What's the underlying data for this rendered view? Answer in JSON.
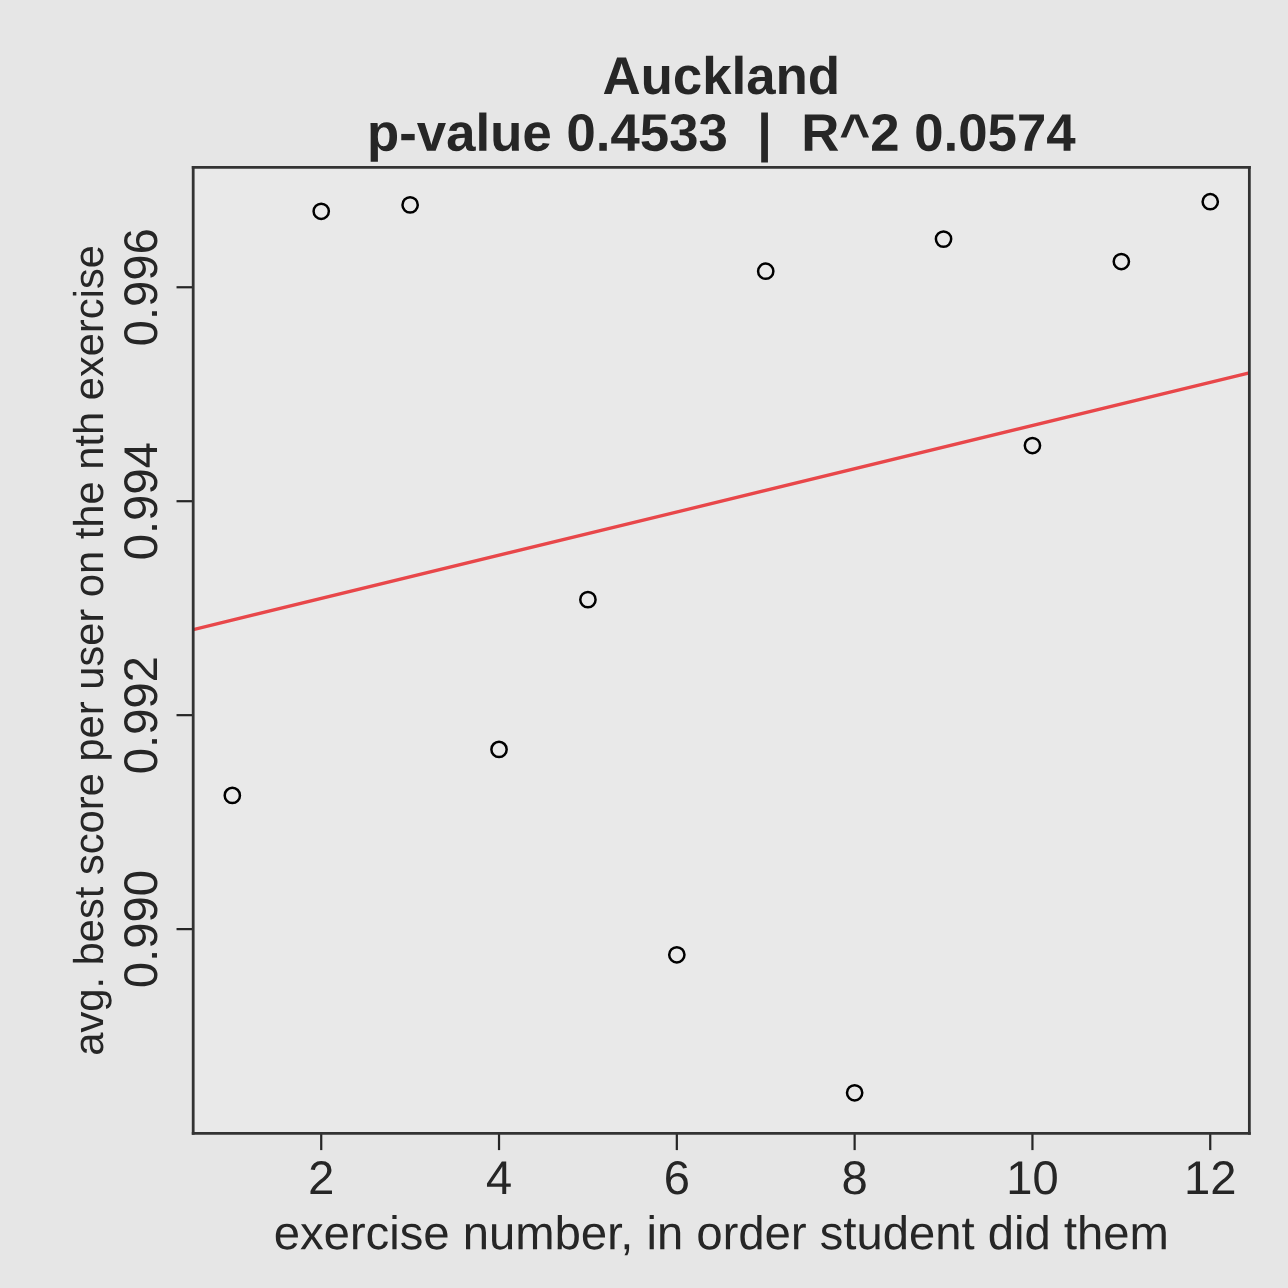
{
  "chart_data": {
    "type": "scatter",
    "title": "Auckland\np-value 0.4533  |  R^2 0.0574",
    "xlabel": "exercise number, in order student did them",
    "ylabel": "avg. best score per user on the nth exercise",
    "series": [
      {
        "color": "#000000",
        "marker": "circle",
        "x": [
          1,
          2,
          3,
          4,
          5,
          6,
          7,
          8,
          9,
          10,
          11,
          12
        ],
        "values": [
          0.99125,
          0.99671,
          0.99677,
          0.99168,
          0.99308,
          0.98976,
          0.99615,
          0.98847,
          0.99645,
          0.99452,
          0.99624,
          0.9968
        ]
      },
      {
        "type": "line",
        "color": "#e8474a",
        "x": [
          0.56,
          12.44
        ],
        "values": [
          0.9928,
          0.9952
        ]
      }
    ],
    "xlim": [
      0.56,
      12.44
    ],
    "ylim": [
      0.98809,
      0.99712
    ],
    "xticks": [
      2,
      4,
      6,
      8,
      10,
      12
    ],
    "yticks": [
      {
        "value": 0.99,
        "label": "0.990"
      },
      0.992,
      0.994,
      0.996
    ],
    "grid": false
  }
}
